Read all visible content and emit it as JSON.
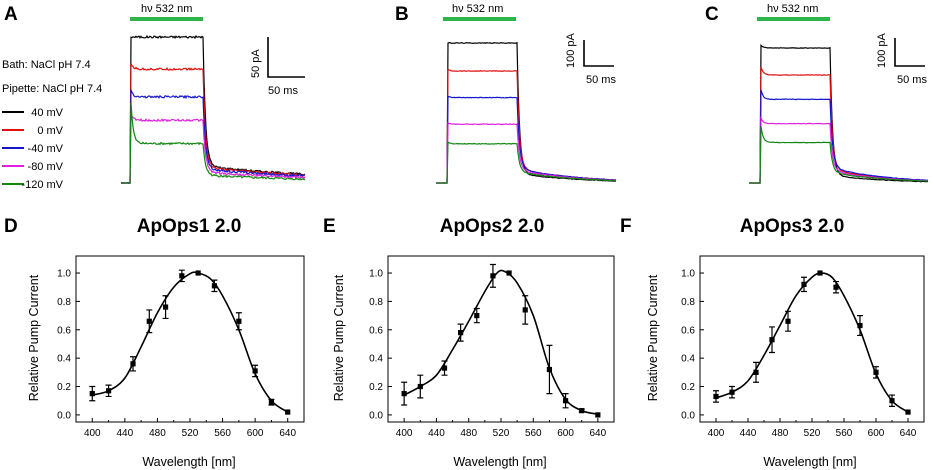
{
  "figure": {
    "panel_labels": [
      "A",
      "B",
      "C",
      "D",
      "E",
      "F"
    ],
    "trace_panels": [
      {
        "stim_label": "hν 532 nm",
        "scale_y": "50 pA",
        "scale_x": "50 ms"
      },
      {
        "stim_label": "hν 532 nm",
        "scale_y": "100 pA",
        "scale_x": "50 ms"
      },
      {
        "stim_label": "hν 532 nm",
        "scale_y": "100 pA",
        "scale_x": "50 ms"
      }
    ],
    "solutions": {
      "bath": "Bath: NaCl pH 7.4",
      "pipette": "Pipette: NaCl pH 7.4"
    },
    "colors": {
      "stim_bar": "#2db54a",
      "marker": "#000000"
    }
  },
  "chart_data": [
    {
      "type": "line",
      "panel": "A",
      "title": "",
      "xlabel": "",
      "ylabel": "",
      "legend_position": "left",
      "series": [
        {
          "name": "40 mV",
          "color": "#000000",
          "plateau": 100,
          "peak": 100,
          "tail": 11
        },
        {
          "name": "0 mV",
          "color": "#e01010",
          "plateau": 78,
          "peak": 82,
          "tail": 10
        },
        {
          "name": "-40 mV",
          "color": "#1515d0",
          "plateau": 59,
          "peak": 64,
          "tail": 9
        },
        {
          "name": "-80 mV",
          "color": "#e020e0",
          "plateau": 43,
          "peak": 47,
          "tail": 7
        },
        {
          "name": "-120 mV",
          "color": "#118811",
          "plateau": 27,
          "peak": 55,
          "tail": 5
        }
      ]
    },
    {
      "type": "line",
      "panel": "B",
      "series": [
        {
          "name": "40 mV",
          "color": "#000000",
          "plateau": 100,
          "peak": 100,
          "tail": 6
        },
        {
          "name": "0 mV",
          "color": "#e01010",
          "plateau": 80,
          "peak": 81,
          "tail": 9
        },
        {
          "name": "-40 mV",
          "color": "#1515d0",
          "plateau": 61,
          "peak": 62,
          "tail": 9
        },
        {
          "name": "-80 mV",
          "color": "#e020e0",
          "plateau": 42,
          "peak": 43,
          "tail": 8
        },
        {
          "name": "-120 mV",
          "color": "#118811",
          "plateau": 28,
          "peak": 29,
          "tail": 7
        }
      ]
    },
    {
      "type": "line",
      "panel": "C",
      "series": [
        {
          "name": "40 mV",
          "color": "#000000",
          "plateau": 100,
          "peak": 102,
          "tail": 5
        },
        {
          "name": "0 mV",
          "color": "#e01010",
          "plateau": 80,
          "peak": 86,
          "tail": 9
        },
        {
          "name": "-40 mV",
          "color": "#1515d0",
          "plateau": 62,
          "peak": 69,
          "tail": 10
        },
        {
          "name": "-80 mV",
          "color": "#e020e0",
          "plateau": 44,
          "peak": 48,
          "tail": 8
        },
        {
          "name": "-120 mV",
          "color": "#118811",
          "plateau": 30,
          "peak": 42,
          "tail": 7
        }
      ]
    },
    {
      "type": "line",
      "panel": "D",
      "title": "ApOps1 2.0",
      "xlabel": "Wavelength [nm]",
      "ylabel": "Relative Pump Current",
      "xlim": [
        380,
        660
      ],
      "ylim": [
        -0.05,
        1.12
      ],
      "xticks": [
        400,
        420,
        440,
        460,
        480,
        500,
        520,
        540,
        560,
        580,
        600,
        620,
        640
      ],
      "yticks": [
        0.0,
        0.2,
        0.4,
        0.6,
        0.8,
        1.0
      ],
      "x": [
        400,
        420,
        450,
        470,
        490,
        510,
        530,
        550,
        580,
        600,
        620,
        640
      ],
      "y": [
        0.15,
        0.17,
        0.36,
        0.66,
        0.76,
        0.98,
        1.0,
        0.91,
        0.66,
        0.31,
        0.09,
        0.02
      ],
      "err": [
        0.05,
        0.04,
        0.05,
        0.08,
        0.08,
        0.04,
        0.0,
        0.04,
        0.06,
        0.04,
        0.02,
        0.0
      ],
      "fit": [
        [
          400,
          0.14
        ],
        [
          420,
          0.17
        ],
        [
          440,
          0.26
        ],
        [
          460,
          0.48
        ],
        [
          480,
          0.72
        ],
        [
          500,
          0.9
        ],
        [
          520,
          0.995
        ],
        [
          530,
          1.0
        ],
        [
          545,
          0.96
        ],
        [
          560,
          0.84
        ],
        [
          580,
          0.6
        ],
        [
          600,
          0.29
        ],
        [
          620,
          0.1
        ],
        [
          640,
          0.02
        ]
      ]
    },
    {
      "type": "line",
      "panel": "E",
      "title": "ApOps2 2.0",
      "xlabel": "Wavelength [nm]",
      "ylabel": "Relative Pump Current",
      "xlim": [
        380,
        660
      ],
      "ylim": [
        -0.05,
        1.12
      ],
      "xticks": [
        400,
        420,
        440,
        460,
        480,
        500,
        520,
        540,
        560,
        580,
        600,
        620,
        640
      ],
      "yticks": [
        0.0,
        0.2,
        0.4,
        0.6,
        0.8,
        1.0
      ],
      "x": [
        400,
        420,
        450,
        470,
        490,
        510,
        530,
        550,
        580,
        600,
        620,
        640
      ],
      "y": [
        0.15,
        0.2,
        0.33,
        0.58,
        0.7,
        0.98,
        1.0,
        0.74,
        0.32,
        0.1,
        0.03,
        0.0
      ],
      "err": [
        0.08,
        0.08,
        0.05,
        0.06,
        0.05,
        0.08,
        0.0,
        0.1,
        0.17,
        0.05,
        0.01,
        0.0
      ],
      "fit": [
        [
          400,
          0.14
        ],
        [
          420,
          0.2
        ],
        [
          440,
          0.28
        ],
        [
          460,
          0.46
        ],
        [
          480,
          0.66
        ],
        [
          500,
          0.87
        ],
        [
          515,
          1.0
        ],
        [
          525,
          1.01
        ],
        [
          540,
          0.93
        ],
        [
          560,
          0.7
        ],
        [
          580,
          0.33
        ],
        [
          600,
          0.11
        ],
        [
          620,
          0.03
        ],
        [
          640,
          0.005
        ]
      ]
    },
    {
      "type": "line",
      "panel": "F",
      "title": "ApOps3 2.0",
      "xlabel": "Wavelength [nm]",
      "ylabel": "Relative Pump Current",
      "xlim": [
        380,
        660
      ],
      "ylim": [
        -0.05,
        1.12
      ],
      "xticks": [
        400,
        420,
        440,
        460,
        480,
        500,
        520,
        540,
        560,
        580,
        600,
        620,
        640
      ],
      "yticks": [
        0.0,
        0.2,
        0.4,
        0.6,
        0.8,
        1.0
      ],
      "x": [
        400,
        420,
        450,
        470,
        490,
        510,
        530,
        550,
        580,
        600,
        620,
        640
      ],
      "y": [
        0.13,
        0.16,
        0.3,
        0.53,
        0.66,
        0.92,
        1.0,
        0.9,
        0.63,
        0.3,
        0.1,
        0.02
      ],
      "err": [
        0.04,
        0.04,
        0.07,
        0.09,
        0.07,
        0.05,
        0.0,
        0.04,
        0.07,
        0.04,
        0.04,
        0.0
      ],
      "fit": [
        [
          400,
          0.12
        ],
        [
          420,
          0.16
        ],
        [
          440,
          0.24
        ],
        [
          460,
          0.42
        ],
        [
          480,
          0.63
        ],
        [
          500,
          0.84
        ],
        [
          520,
          0.97
        ],
        [
          532,
          1.0
        ],
        [
          545,
          0.97
        ],
        [
          560,
          0.84
        ],
        [
          580,
          0.6
        ],
        [
          600,
          0.29
        ],
        [
          620,
          0.1
        ],
        [
          640,
          0.02
        ]
      ]
    }
  ]
}
